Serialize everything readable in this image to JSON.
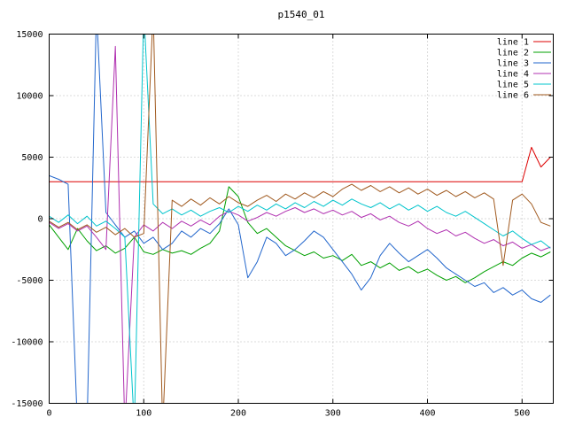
{
  "title": "p1540_01",
  "chart_data": {
    "type": "line",
    "title": "p1540_01",
    "xlabel": "",
    "ylabel": "",
    "xlim": [
      0,
      533
    ],
    "ylim": [
      -15000,
      15000
    ],
    "x_ticks": [
      0,
      100,
      200,
      300,
      400,
      500
    ],
    "y_ticks": [
      -15000,
      -10000,
      -5000,
      0,
      5000,
      10000,
      15000
    ],
    "grid": true,
    "grid_color": "#b8b8b8",
    "border_color": "#000000",
    "legend_position": "top-right",
    "x": [
      0,
      10,
      20,
      30,
      40,
      50,
      60,
      70,
      80,
      90,
      100,
      110,
      120,
      130,
      140,
      150,
      160,
      170,
      180,
      190,
      200,
      210,
      220,
      230,
      240,
      250,
      260,
      270,
      280,
      290,
      300,
      310,
      320,
      330,
      340,
      350,
      360,
      370,
      380,
      390,
      400,
      410,
      420,
      430,
      440,
      450,
      460,
      470,
      480,
      490,
      500,
      510,
      520,
      530
    ],
    "series": [
      {
        "name": "line 1",
        "color": "#dd0000",
        "values": [
          3000,
          3000,
          3000,
          3000,
          3000,
          3000,
          3000,
          3000,
          3000,
          3000,
          3000,
          3000,
          3000,
          3000,
          3000,
          3000,
          3000,
          3000,
          3000,
          3000,
          3000,
          3000,
          3000,
          3000,
          3000,
          3000,
          3000,
          3000,
          3000,
          3000,
          3000,
          3000,
          3000,
          3000,
          3000,
          3000,
          3000,
          3000,
          3000,
          3000,
          3000,
          3000,
          3000,
          3000,
          3000,
          3000,
          3000,
          3000,
          3000,
          3000,
          3000,
          5800,
          4200,
          5000
        ]
      },
      {
        "name": "line 2",
        "color": "#00a000",
        "values": [
          -500,
          -1500,
          -2500,
          -800,
          -1800,
          -2600,
          -2200,
          -2800,
          -2400,
          -1500,
          -2700,
          -2900,
          -2500,
          -2800,
          -2600,
          -2900,
          -2400,
          -2000,
          -1000,
          2600,
          1800,
          -300,
          -1200,
          -800,
          -1500,
          -2200,
          -2600,
          -3000,
          -2700,
          -3200,
          -3000,
          -3400,
          -2900,
          -3800,
          -3500,
          -4000,
          -3600,
          -4200,
          -3900,
          -4400,
          -4100,
          -4600,
          -5000,
          -4700,
          -5200,
          -4800,
          -4300,
          -3900,
          -3500,
          -3800,
          -3200,
          -2800,
          -3100,
          -2700
        ]
      },
      {
        "name": "line 3",
        "color": "#2266cc",
        "values": [
          3500,
          3200,
          2800,
          -17000,
          -17000,
          17000,
          500,
          -500,
          -1500,
          -1000,
          -2000,
          -1500,
          -2500,
          -2000,
          -1000,
          -1500,
          -800,
          -1200,
          -400,
          800,
          -500,
          -4800,
          -3500,
          -1500,
          -2000,
          -3000,
          -2500,
          -1800,
          -1000,
          -1500,
          -2500,
          -3500,
          -4500,
          -5800,
          -4800,
          -3000,
          -2000,
          -2800,
          -3500,
          -3000,
          -2500,
          -3200,
          -4000,
          -4500,
          -5000,
          -5500,
          -5200,
          -6000,
          -5600,
          -6200,
          -5800,
          -6500,
          -6800,
          -6200
        ]
      },
      {
        "name": "line 4",
        "color": "#b030b0",
        "values": [
          -300,
          -800,
          -400,
          -1000,
          -600,
          -1500,
          -2500,
          14000,
          -17000,
          -1500,
          -500,
          -1000,
          -300,
          -800,
          -200,
          -600,
          -100,
          -500,
          200,
          600,
          300,
          -200,
          100,
          500,
          200,
          600,
          900,
          500,
          800,
          400,
          700,
          300,
          600,
          100,
          400,
          -100,
          200,
          -300,
          -600,
          -200,
          -800,
          -1200,
          -900,
          -1400,
          -1100,
          -1600,
          -2000,
          -1700,
          -2200,
          -1900,
          -2400,
          -2100,
          -2600,
          -2300
        ]
      },
      {
        "name": "line 5",
        "color": "#00c4cc",
        "values": [
          200,
          -300,
          300,
          -400,
          200,
          -600,
          -200,
          -800,
          -1500,
          -17000,
          17000,
          1200,
          400,
          800,
          300,
          700,
          200,
          600,
          900,
          500,
          1000,
          600,
          1100,
          700,
          1200,
          800,
          1300,
          900,
          1400,
          1000,
          1500,
          1100,
          1600,
          1200,
          900,
          1300,
          800,
          1200,
          700,
          1100,
          600,
          1000,
          500,
          200,
          600,
          100,
          -400,
          -900,
          -1400,
          -1000,
          -1600,
          -2100,
          -1800,
          -2400
        ]
      },
      {
        "name": "line 6",
        "color": "#a0591e",
        "values": [
          -200,
          -700,
          -300,
          -900,
          -500,
          -1100,
          -700,
          -1300,
          -800,
          -1500,
          -1200,
          17000,
          -17000,
          1500,
          1000,
          1600,
          1100,
          1700,
          1200,
          1800,
          1300,
          1000,
          1500,
          1900,
          1400,
          2000,
          1600,
          2100,
          1700,
          2200,
          1800,
          2400,
          2800,
          2300,
          2700,
          2200,
          2600,
          2100,
          2500,
          2000,
          2400,
          1900,
          2300,
          1800,
          2200,
          1700,
          2100,
          1600,
          -3800,
          1500,
          2000,
          1200,
          -300,
          -600
        ]
      }
    ]
  }
}
